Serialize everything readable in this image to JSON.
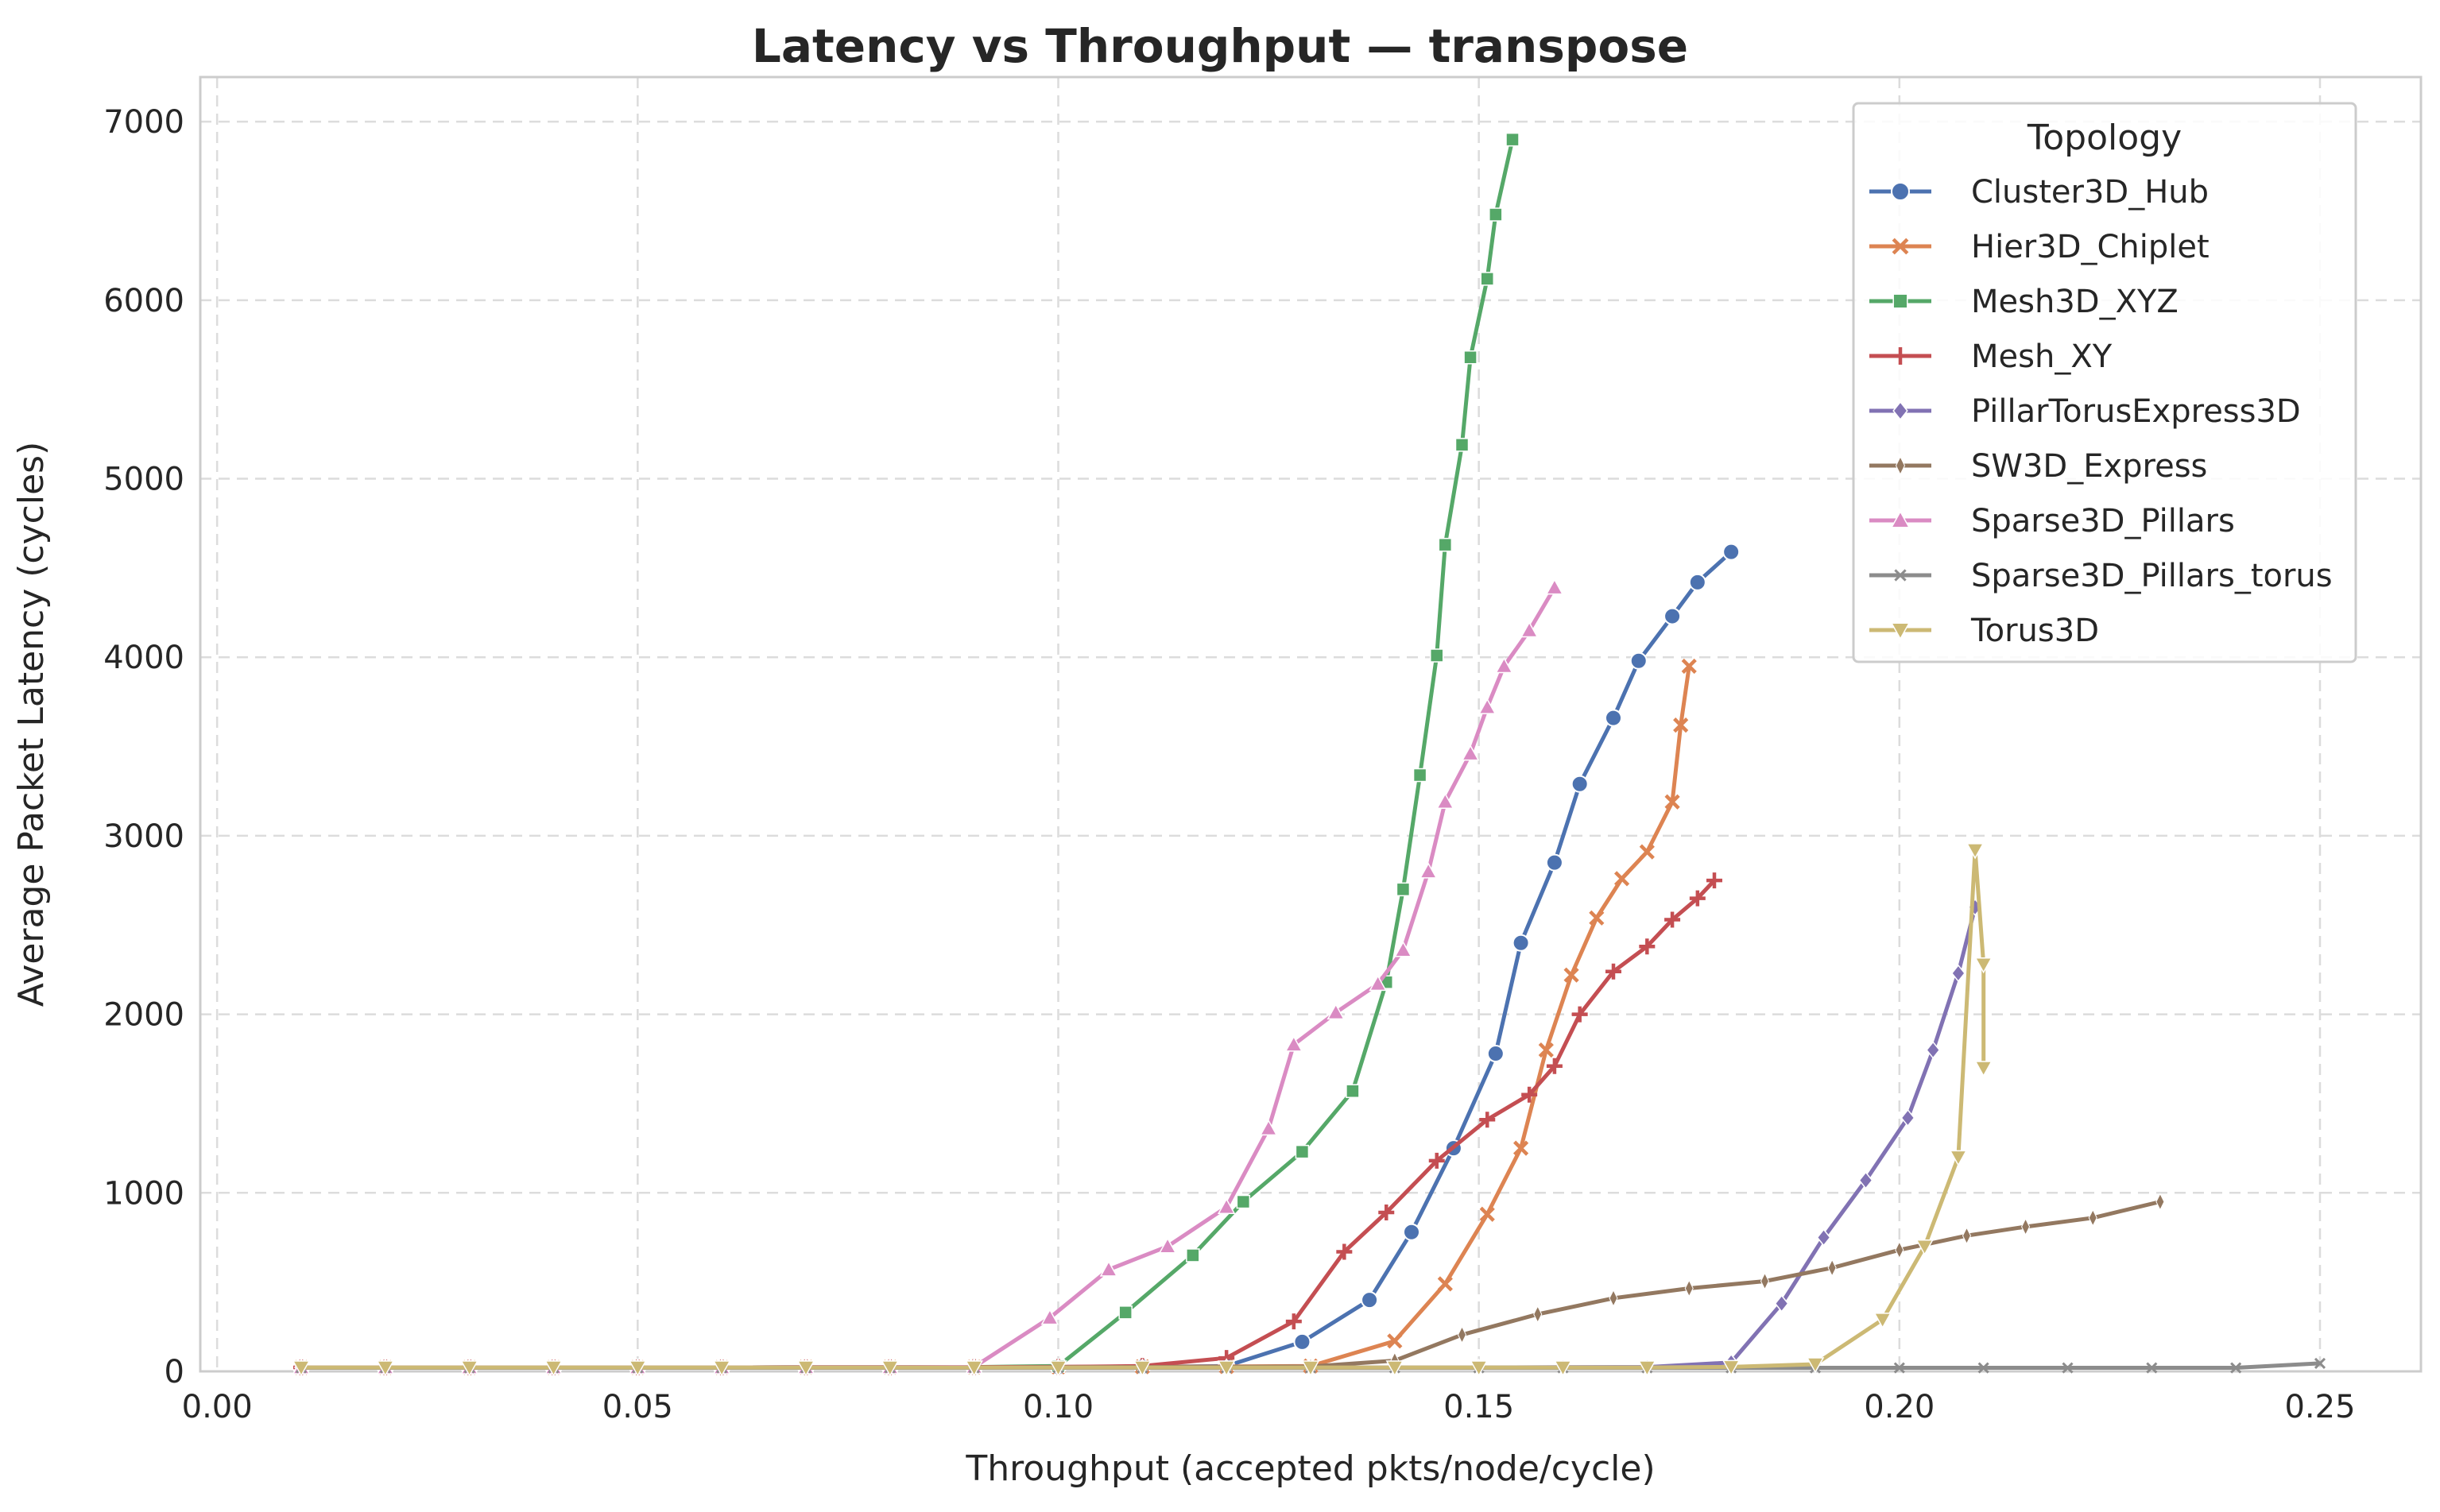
{
  "chart_data": {
    "type": "line",
    "title": "Latency vs Throughput — transpose",
    "xlabel": "Throughput (accepted pkts/node/cycle)",
    "ylabel": "Average Packet Latency (cycles)",
    "xlim": [
      -0.002,
      0.262
    ],
    "ylim": [
      0,
      7250
    ],
    "x_ticks": [
      0.0,
      0.05,
      0.1,
      0.15,
      0.2,
      0.25
    ],
    "x_tick_labels": [
      "0.00",
      "0.05",
      "0.10",
      "0.15",
      "0.20",
      "0.25"
    ],
    "y_ticks": [
      0,
      1000,
      2000,
      3000,
      4000,
      5000,
      6000,
      7000
    ],
    "y_tick_labels": [
      "0",
      "1000",
      "2000",
      "3000",
      "4000",
      "5000",
      "6000",
      "7000"
    ],
    "grid": true,
    "legend": {
      "title": "Topology",
      "placement": "top-right"
    },
    "series": [
      {
        "name": "Cluster3D_Hub",
        "color": "#4C72B0",
        "marker": "circle",
        "points": [
          [
            0.01,
            22
          ],
          [
            0.02,
            22
          ],
          [
            0.03,
            22
          ],
          [
            0.04,
            22
          ],
          [
            0.05,
            22
          ],
          [
            0.06,
            22
          ],
          [
            0.07,
            23
          ],
          [
            0.08,
            23
          ],
          [
            0.09,
            24
          ],
          [
            0.1,
            25
          ],
          [
            0.11,
            26
          ],
          [
            0.12,
            30
          ],
          [
            0.129,
            165
          ],
          [
            0.137,
            400
          ],
          [
            0.142,
            780
          ],
          [
            0.147,
            1250
          ],
          [
            0.152,
            1780
          ],
          [
            0.155,
            2400
          ],
          [
            0.159,
            2850
          ],
          [
            0.162,
            3290
          ],
          [
            0.166,
            3660
          ],
          [
            0.169,
            3980
          ],
          [
            0.173,
            4230
          ],
          [
            0.176,
            4420
          ],
          [
            0.18,
            4590
          ]
        ]
      },
      {
        "name": "Hier3D_Chiplet",
        "color": "#DD8452",
        "marker": "x",
        "points": [
          [
            0.01,
            22
          ],
          [
            0.02,
            22
          ],
          [
            0.03,
            22
          ],
          [
            0.04,
            22
          ],
          [
            0.05,
            22
          ],
          [
            0.06,
            22
          ],
          [
            0.07,
            23
          ],
          [
            0.08,
            23
          ],
          [
            0.09,
            24
          ],
          [
            0.1,
            25
          ],
          [
            0.11,
            26
          ],
          [
            0.12,
            27
          ],
          [
            0.13,
            30
          ],
          [
            0.14,
            170
          ],
          [
            0.146,
            490
          ],
          [
            0.151,
            880
          ],
          [
            0.155,
            1250
          ],
          [
            0.158,
            1800
          ],
          [
            0.161,
            2220
          ],
          [
            0.164,
            2540
          ],
          [
            0.167,
            2760
          ],
          [
            0.17,
            2910
          ],
          [
            0.173,
            3190
          ],
          [
            0.174,
            3620
          ],
          [
            0.175,
            3950
          ]
        ]
      },
      {
        "name": "Mesh3D_XYZ",
        "color": "#55A868",
        "marker": "square",
        "points": [
          [
            0.01,
            22
          ],
          [
            0.02,
            22
          ],
          [
            0.03,
            22
          ],
          [
            0.04,
            22
          ],
          [
            0.05,
            22
          ],
          [
            0.06,
            22
          ],
          [
            0.07,
            23
          ],
          [
            0.08,
            23
          ],
          [
            0.09,
            24
          ],
          [
            0.1,
            30
          ],
          [
            0.108,
            330
          ],
          [
            0.116,
            650
          ],
          [
            0.122,
            950
          ],
          [
            0.129,
            1230
          ],
          [
            0.135,
            1570
          ],
          [
            0.139,
            2180
          ],
          [
            0.141,
            2700
          ],
          [
            0.143,
            3340
          ],
          [
            0.145,
            4010
          ],
          [
            0.146,
            4630
          ],
          [
            0.148,
            5190
          ],
          [
            0.149,
            5680
          ],
          [
            0.151,
            6120
          ],
          [
            0.152,
            6480
          ],
          [
            0.154,
            6900
          ]
        ]
      },
      {
        "name": "Mesh_XY",
        "color": "#C44E52",
        "marker": "plus",
        "points": [
          [
            0.01,
            22
          ],
          [
            0.02,
            22
          ],
          [
            0.03,
            22
          ],
          [
            0.04,
            22
          ],
          [
            0.05,
            22
          ],
          [
            0.06,
            22
          ],
          [
            0.07,
            23
          ],
          [
            0.08,
            23
          ],
          [
            0.09,
            24
          ],
          [
            0.1,
            25
          ],
          [
            0.11,
            30
          ],
          [
            0.12,
            75
          ],
          [
            0.128,
            280
          ],
          [
            0.134,
            670
          ],
          [
            0.139,
            890
          ],
          [
            0.145,
            1180
          ],
          [
            0.151,
            1410
          ],
          [
            0.156,
            1550
          ],
          [
            0.159,
            1710
          ],
          [
            0.162,
            2000
          ],
          [
            0.166,
            2240
          ],
          [
            0.17,
            2380
          ],
          [
            0.173,
            2530
          ],
          [
            0.176,
            2650
          ],
          [
            0.178,
            2750
          ]
        ]
      },
      {
        "name": "PillarTorusExpress3D",
        "color": "#8172B3",
        "marker": "diamond",
        "points": [
          [
            0.01,
            22
          ],
          [
            0.02,
            22
          ],
          [
            0.03,
            22
          ],
          [
            0.04,
            22
          ],
          [
            0.05,
            22
          ],
          [
            0.06,
            22
          ],
          [
            0.07,
            22
          ],
          [
            0.08,
            22
          ],
          [
            0.09,
            22
          ],
          [
            0.1,
            22
          ],
          [
            0.11,
            22
          ],
          [
            0.12,
            22
          ],
          [
            0.13,
            22
          ],
          [
            0.14,
            22
          ],
          [
            0.15,
            22
          ],
          [
            0.16,
            23
          ],
          [
            0.17,
            24
          ],
          [
            0.18,
            50
          ],
          [
            0.186,
            380
          ],
          [
            0.191,
            750
          ],
          [
            0.196,
            1070
          ],
          [
            0.201,
            1420
          ],
          [
            0.204,
            1800
          ],
          [
            0.207,
            2230
          ],
          [
            0.209,
            2600
          ]
        ]
      },
      {
        "name": "SW3D_Express",
        "color": "#937860",
        "marker": "thin-diamond",
        "points": [
          [
            0.01,
            22
          ],
          [
            0.02,
            22
          ],
          [
            0.03,
            22
          ],
          [
            0.04,
            22
          ],
          [
            0.05,
            22
          ],
          [
            0.06,
            22
          ],
          [
            0.07,
            22
          ],
          [
            0.08,
            22
          ],
          [
            0.09,
            22
          ],
          [
            0.1,
            23
          ],
          [
            0.11,
            24
          ],
          [
            0.12,
            25
          ],
          [
            0.13,
            27
          ],
          [
            0.14,
            60
          ],
          [
            0.148,
            205
          ],
          [
            0.157,
            320
          ],
          [
            0.166,
            410
          ],
          [
            0.175,
            465
          ],
          [
            0.184,
            505
          ],
          [
            0.192,
            580
          ],
          [
            0.2,
            680
          ],
          [
            0.208,
            760
          ],
          [
            0.215,
            810
          ],
          [
            0.223,
            860
          ],
          [
            0.231,
            950
          ]
        ]
      },
      {
        "name": "Sparse3D_Pillars",
        "color": "#DA8BC3",
        "marker": "triangle-up",
        "points": [
          [
            0.01,
            22
          ],
          [
            0.02,
            22
          ],
          [
            0.03,
            22
          ],
          [
            0.04,
            22
          ],
          [
            0.05,
            22
          ],
          [
            0.06,
            22
          ],
          [
            0.07,
            23
          ],
          [
            0.08,
            23
          ],
          [
            0.09,
            25
          ],
          [
            0.099,
            300
          ],
          [
            0.106,
            570
          ],
          [
            0.113,
            700
          ],
          [
            0.12,
            920
          ],
          [
            0.125,
            1360
          ],
          [
            0.128,
            1830
          ],
          [
            0.133,
            2010
          ],
          [
            0.138,
            2170
          ],
          [
            0.141,
            2360
          ],
          [
            0.144,
            2800
          ],
          [
            0.146,
            3190
          ],
          [
            0.149,
            3460
          ],
          [
            0.151,
            3720
          ],
          [
            0.153,
            3950
          ],
          [
            0.156,
            4150
          ],
          [
            0.159,
            4390
          ]
        ]
      },
      {
        "name": "Sparse3D_Pillars_torus",
        "color": "#8C8C8C",
        "marker": "thin-x",
        "points": [
          [
            0.01,
            20
          ],
          [
            0.02,
            20
          ],
          [
            0.03,
            20
          ],
          [
            0.04,
            20
          ],
          [
            0.05,
            20
          ],
          [
            0.06,
            20
          ],
          [
            0.07,
            20
          ],
          [
            0.08,
            20
          ],
          [
            0.09,
            20
          ],
          [
            0.1,
            20
          ],
          [
            0.11,
            20
          ],
          [
            0.12,
            20
          ],
          [
            0.13,
            20
          ],
          [
            0.14,
            20
          ],
          [
            0.15,
            20
          ],
          [
            0.16,
            20
          ],
          [
            0.17,
            20
          ],
          [
            0.18,
            20
          ],
          [
            0.19,
            20
          ],
          [
            0.2,
            20
          ],
          [
            0.21,
            20
          ],
          [
            0.22,
            20
          ],
          [
            0.23,
            20
          ],
          [
            0.24,
            20
          ],
          [
            0.25,
            45
          ]
        ]
      },
      {
        "name": "Torus3D",
        "color": "#CCB974",
        "marker": "triangle-down",
        "points": [
          [
            0.01,
            22
          ],
          [
            0.02,
            22
          ],
          [
            0.03,
            22
          ],
          [
            0.04,
            22
          ],
          [
            0.05,
            22
          ],
          [
            0.06,
            22
          ],
          [
            0.07,
            22
          ],
          [
            0.08,
            22
          ],
          [
            0.09,
            22
          ],
          [
            0.1,
            22
          ],
          [
            0.11,
            22
          ],
          [
            0.12,
            22
          ],
          [
            0.13,
            22
          ],
          [
            0.14,
            22
          ],
          [
            0.15,
            22
          ],
          [
            0.16,
            22
          ],
          [
            0.17,
            22
          ],
          [
            0.18,
            25
          ],
          [
            0.19,
            40
          ],
          [
            0.198,
            290
          ],
          [
            0.203,
            700
          ],
          [
            0.207,
            1200
          ],
          [
            0.209,
            2920
          ],
          [
            0.21,
            2280
          ],
          [
            0.21,
            1700
          ]
        ]
      }
    ]
  }
}
